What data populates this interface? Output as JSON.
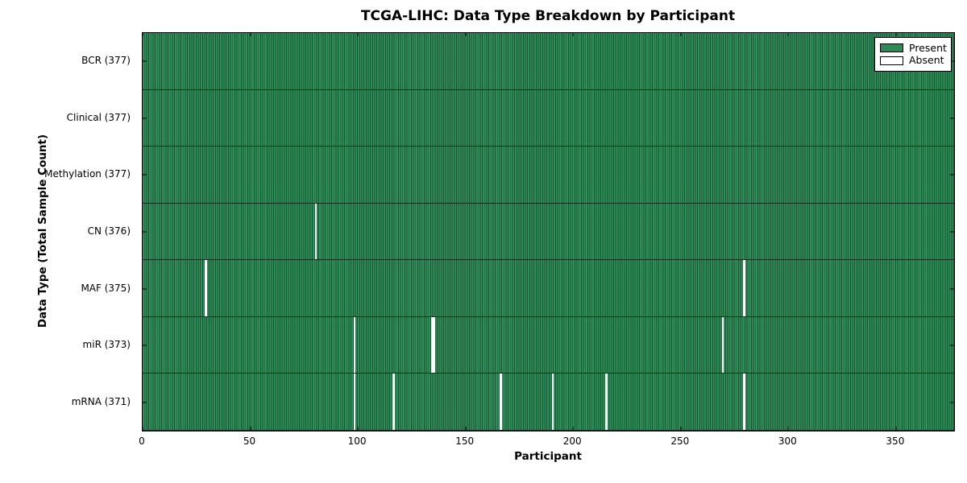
{
  "chart_data": {
    "type": "heatmap",
    "title": "TCGA-LIHC: Data Type Breakdown by Participant",
    "xlabel": "Participant",
    "ylabel": "Data Type (Total Sample Count)",
    "xlim": [
      0,
      377
    ],
    "x_ticks": [
      0,
      50,
      100,
      150,
      200,
      250,
      300,
      350
    ],
    "n_participants": 377,
    "grid": false,
    "colors": {
      "present_fill": "#2E8B57",
      "present_edge": "#1a5331",
      "absent_fill": "#ffffff",
      "axis": "#000000",
      "background": "#ffffff"
    },
    "legend": {
      "position": "upper-right",
      "entries": [
        {
          "name": "present",
          "label": "Present",
          "color": "#2E8B57"
        },
        {
          "name": "absent",
          "label": "Absent",
          "color": "#ffffff"
        }
      ]
    },
    "rows": [
      {
        "name": "BCR",
        "label": "BCR (377)",
        "total": 377,
        "absent_participants": []
      },
      {
        "name": "Clinical",
        "label": "Clinical (377)",
        "total": 377,
        "absent_participants": []
      },
      {
        "name": "Methylation",
        "label": "Methylation (377)",
        "total": 377,
        "absent_participants": []
      },
      {
        "name": "CN",
        "label": "CN (376)",
        "total": 376,
        "absent_participants": [
          80
        ]
      },
      {
        "name": "MAF",
        "label": "MAF (375)",
        "total": 375,
        "absent_participants": [
          29,
          279
        ]
      },
      {
        "name": "miR",
        "label": "miR (373)",
        "total": 373,
        "absent_participants": [
          98,
          134,
          135,
          269
        ]
      },
      {
        "name": "mRNA",
        "label": "mRNA (371)",
        "total": 371,
        "absent_participants": [
          98,
          116,
          166,
          190,
          215,
          279
        ]
      }
    ]
  }
}
